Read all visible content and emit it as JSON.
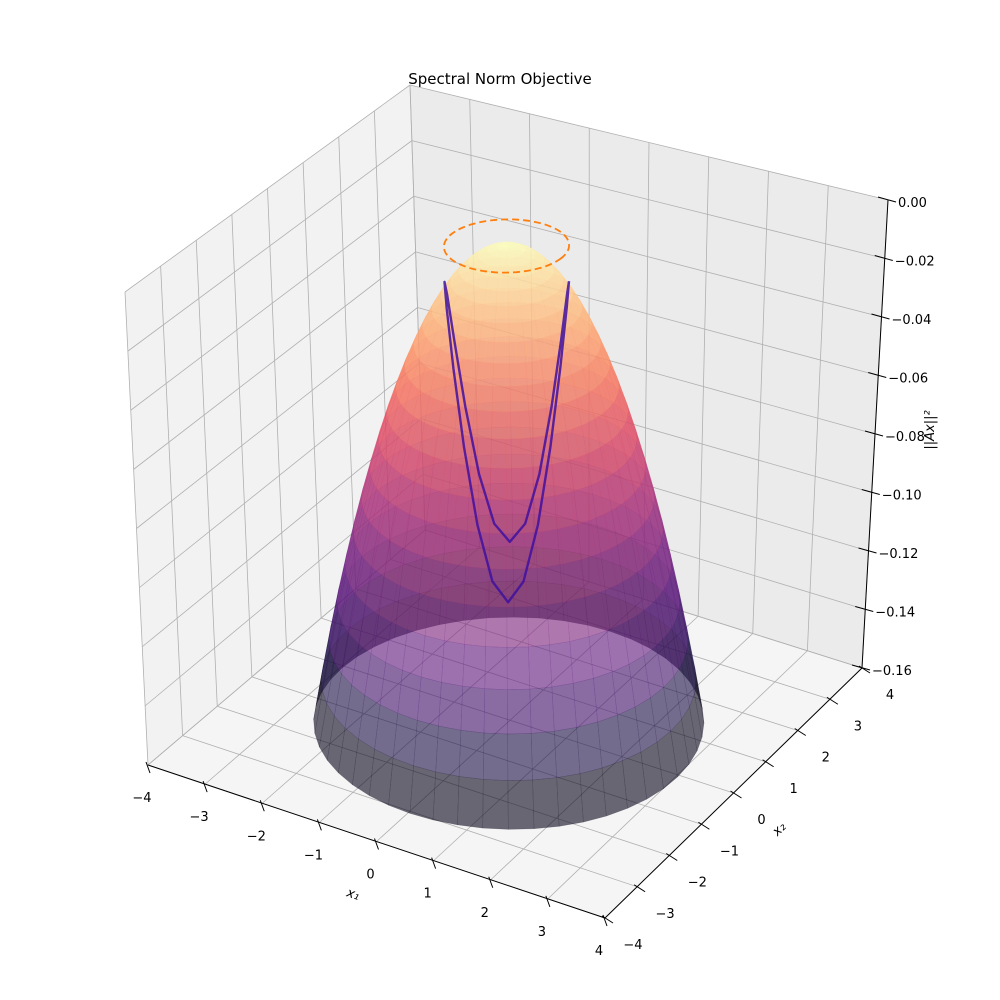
{
  "chart_data": {
    "type": "surface3d",
    "title": "Spectral Norm Objective",
    "xlabel": "x₁",
    "ylabel": "x₂",
    "zlabel": "||Ax||²",
    "xlim": [
      -4,
      4
    ],
    "ylim": [
      -4,
      4
    ],
    "zlim": [
      -0.16,
      0.0
    ],
    "xticks": [
      "−4",
      "−3",
      "−2",
      "−1",
      "0",
      "1",
      "2",
      "3",
      "4"
    ],
    "yticks": [
      "−4",
      "−3",
      "−2",
      "−1",
      "0",
      "1",
      "2",
      "3",
      "4"
    ],
    "zticks": [
      "0.00",
      "−0.02",
      "−0.04",
      "−0.06",
      "−0.08",
      "−0.10",
      "−0.12",
      "−0.14",
      "−0.16"
    ],
    "xtick_values": [
      -4,
      -3,
      -2,
      -1,
      0,
      1,
      2,
      3,
      4
    ],
    "ytick_values": [
      -4,
      -3,
      -2,
      -1,
      0,
      1,
      2,
      3,
      4
    ],
    "ztick_values": [
      0,
      -0.02,
      -0.04,
      -0.06,
      -0.08,
      -0.1,
      -0.12,
      -0.14,
      -0.16
    ],
    "grid": true,
    "surface": {
      "function": "z = -(x1^2 + x2^2) / 56",
      "coefficient": -0.017857,
      "radius": 3,
      "colormap": "magma",
      "alpha": 0.6
    },
    "circle": {
      "radius": 0.9,
      "z": 0.0,
      "color": "#ff7f0e",
      "linestyle": "dashed"
    },
    "curve": {
      "color": "#3f0fa0",
      "x1": [
        0.779,
        0.636,
        0.45,
        0.233,
        0,
        -0.233,
        -0.45,
        -0.636,
        -0.779,
        -0.869,
        -0.9,
        -0.869,
        -0.779,
        -0.636,
        -0.45,
        -0.233,
        0,
        0.233,
        0.45,
        0.636,
        0.779,
        0.869,
        0.9,
        0.869,
        0.779
      ],
      "x2": [
        0.45,
        0.636,
        0.779,
        0.869,
        0.9,
        0.869,
        0.779,
        0.636,
        0.45,
        0.233,
        0,
        -0.233,
        -0.45,
        -0.636,
        -0.779,
        -0.869,
        -0.9,
        -0.869,
        -0.779,
        -0.636,
        -0.45,
        -0.233,
        0,
        0.233,
        0.45
      ],
      "z": [
        -0.012,
        -0.0186,
        -0.0365,
        -0.061,
        -0.0855,
        -0.1034,
        -0.11,
        -0.1034,
        -0.0855,
        -0.061,
        -0.0365,
        -0.0186,
        -0.012,
        -0.0186,
        -0.0365,
        -0.061,
        -0.0855,
        -0.1034,
        -0.11,
        -0.1034,
        -0.0855,
        -0.061,
        -0.0365,
        -0.0186,
        -0.012
      ]
    },
    "colors": {
      "pane_left": "#f2f2f2",
      "pane_back": "#ebebeb",
      "pane_floor": "#f5f5f5",
      "grid": "#b0b0b0"
    }
  }
}
